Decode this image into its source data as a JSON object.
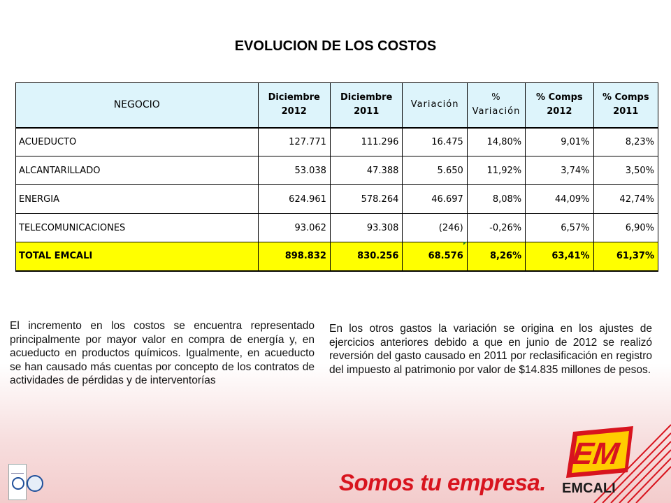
{
  "title": "EVOLUCION DE LOS COSTOS",
  "table": {
    "headers": [
      [
        "NEGOCIO"
      ],
      [
        "Diciembre",
        "2012"
      ],
      [
        "Diciembre",
        "2011"
      ],
      [
        "Variación"
      ],
      [
        "%",
        "Variación"
      ],
      [
        "% Comps",
        "2012"
      ],
      [
        "% Comps",
        "2011"
      ]
    ],
    "rows": [
      [
        "ACUEDUCTO",
        "127.771",
        "111.296",
        "16.475",
        "14,80%",
        "9,01%",
        "8,23%"
      ],
      [
        "ALCANTARILLADO",
        "53.038",
        "47.388",
        "5.650",
        "11,92%",
        "3,74%",
        "3,50%"
      ],
      [
        "ENERGIA",
        "624.961",
        "578.264",
        "46.697",
        "8,08%",
        "44,09%",
        "42,74%"
      ],
      [
        "TELECOMUNICACIONES",
        "93.062",
        "93.308",
        "(246)",
        "-0,26%",
        "6,57%",
        "6,90%"
      ]
    ],
    "total": [
      "TOTAL EMCALI",
      "898.832",
      "830.256",
      "68.576",
      "8,26%",
      "63,41%",
      "61,37%"
    ]
  },
  "paragraphs": {
    "left": "El incremento en los costos se encuentra representado principalmente por mayor valor en compra de energía y, en acueducto en productos químicos. Igualmente, en acueducto se han causado más cuentas por concepto de los contratos de actividades de pérdidas y de interventorías",
    "right": "En los otros gastos la variación se origina en los ajustes de ejercicios anteriores debido a que en junio de 2012 se realizó reversión del gasto causado en 2011 por reclasificación en registro del impuesto al patrimonio por valor de $14.835 millones de pesos."
  },
  "footer": {
    "slogan": "Somos tu empresa.",
    "brand": "EMCALI",
    "brand_mark_text": "EM"
  },
  "colors": {
    "header_bg": "#ddf4fb",
    "total_bg": "#ffff00",
    "brand_red": "#d8141e",
    "brand_yellow": "#ffcc00"
  }
}
